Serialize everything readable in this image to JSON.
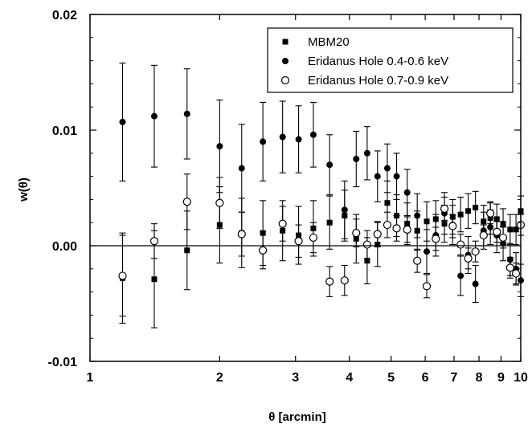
{
  "chart_data": {
    "type": "scatter",
    "xlabel": "θ [arcmin]",
    "ylabel": "w(θ)",
    "xscale": "log",
    "xlim": [
      1,
      10
    ],
    "ylim": [
      -0.01,
      0.02
    ],
    "x_ticks": [
      1,
      2,
      3,
      4,
      5,
      6,
      7,
      8,
      9,
      10
    ],
    "x_tick_labels": [
      "1",
      "2",
      "3",
      "4",
      "5",
      "6",
      "7",
      "8",
      "9",
      "10"
    ],
    "y_ticks": [
      -0.01,
      0.0,
      0.01,
      0.02
    ],
    "y_tick_labels": [
      "-0.01",
      "0.00",
      "0.01",
      "0.02"
    ],
    "zero_line": true,
    "grid": false,
    "legend_position": "top-right",
    "legend": [
      "MBM20",
      "Eridanus Hole 0.4-0.6 keV",
      "Eridanus Hole 0.7-0.9 keV"
    ],
    "series": [
      {
        "name": "MBM20",
        "marker": "filled-square",
        "points": [
          {
            "x": 1.19,
            "y": -0.0028,
            "err": 0.0039
          },
          {
            "x": 1.41,
            "y": -0.0029,
            "err": 0.0042
          },
          {
            "x": 1.68,
            "y": -0.0004,
            "err": 0.0034
          },
          {
            "x": 2.0,
            "y": 0.0018,
            "err": 0.0033
          },
          {
            "x": 2.25,
            "y": 0.0011,
            "err": 0.003
          },
          {
            "x": 2.52,
            "y": 0.0011,
            "err": 0.0028
          },
          {
            "x": 2.8,
            "y": 0.0013,
            "err": 0.0026
          },
          {
            "x": 3.05,
            "y": 0.0009,
            "err": 0.0025
          },
          {
            "x": 3.3,
            "y": 0.0015,
            "err": 0.0024
          },
          {
            "x": 3.6,
            "y": 0.002,
            "err": 0.0023
          },
          {
            "x": 3.9,
            "y": 0.0026,
            "err": 0.0022
          },
          {
            "x": 4.15,
            "y": 0.0006,
            "err": 0.0021
          },
          {
            "x": 4.4,
            "y": -0.0013,
            "err": 0.002
          },
          {
            "x": 4.65,
            "y": 0.0001,
            "err": 0.0019
          },
          {
            "x": 4.9,
            "y": 0.0037,
            "err": 0.0019
          },
          {
            "x": 5.15,
            "y": 0.0026,
            "err": 0.0018
          },
          {
            "x": 5.45,
            "y": 0.0019,
            "err": 0.0018
          },
          {
            "x": 5.75,
            "y": 0.0013,
            "err": 0.0017
          },
          {
            "x": 6.05,
            "y": 0.0021,
            "err": 0.0017
          },
          {
            "x": 6.35,
            "y": 0.0023,
            "err": 0.0016
          },
          {
            "x": 6.65,
            "y": 0.0019,
            "err": 0.0016
          },
          {
            "x": 6.95,
            "y": 0.0025,
            "err": 0.0015
          },
          {
            "x": 7.25,
            "y": 0.0027,
            "err": 0.0015
          },
          {
            "x": 7.55,
            "y": 0.003,
            "err": 0.0015
          },
          {
            "x": 7.85,
            "y": 0.0033,
            "err": 0.0014
          },
          {
            "x": 8.2,
            "y": 0.0021,
            "err": 0.0014
          },
          {
            "x": 8.5,
            "y": 0.0024,
            "err": 0.0014
          },
          {
            "x": 8.8,
            "y": 0.0023,
            "err": 0.0013
          },
          {
            "x": 9.1,
            "y": 0.0019,
            "err": 0.0013
          },
          {
            "x": 9.45,
            "y": 0.0014,
            "err": 0.0013
          },
          {
            "x": 9.75,
            "y": 0.0014,
            "err": 0.0013
          },
          {
            "x": 10.0,
            "y": 0.003,
            "err": 0.0013
          }
        ]
      },
      {
        "name": "Eridanus Hole 0.4-0.6 keV",
        "marker": "filled-circle",
        "points": [
          {
            "x": 1.19,
            "y": 0.0107,
            "err": 0.0051
          },
          {
            "x": 1.41,
            "y": 0.0112,
            "err": 0.0044
          },
          {
            "x": 1.68,
            "y": 0.0114,
            "err": 0.0039
          },
          {
            "x": 2.0,
            "y": 0.0086,
            "err": 0.004
          },
          {
            "x": 2.25,
            "y": 0.0067,
            "err": 0.0038
          },
          {
            "x": 2.52,
            "y": 0.009,
            "err": 0.0034
          },
          {
            "x": 2.8,
            "y": 0.0094,
            "err": 0.0031
          },
          {
            "x": 3.05,
            "y": 0.0092,
            "err": 0.0029
          },
          {
            "x": 3.3,
            "y": 0.0096,
            "err": 0.0028
          },
          {
            "x": 3.6,
            "y": 0.007,
            "err": 0.0026
          },
          {
            "x": 3.9,
            "y": 0.0031,
            "err": 0.0025
          },
          {
            "x": 4.15,
            "y": 0.0075,
            "err": 0.0024
          },
          {
            "x": 4.4,
            "y": 0.008,
            "err": 0.0023
          },
          {
            "x": 4.65,
            "y": 0.006,
            "err": 0.0022
          },
          {
            "x": 4.9,
            "y": 0.0067,
            "err": 0.0021
          },
          {
            "x": 5.15,
            "y": 0.006,
            "err": 0.002
          },
          {
            "x": 5.45,
            "y": 0.0046,
            "err": 0.002
          },
          {
            "x": 5.75,
            "y": 0.0026,
            "err": 0.0019
          },
          {
            "x": 6.05,
            "y": -0.0005,
            "err": 0.0019
          },
          {
            "x": 6.35,
            "y": 0.0009,
            "err": 0.0018
          },
          {
            "x": 6.65,
            "y": 0.0028,
            "err": 0.0018
          },
          {
            "x": 6.95,
            "y": 0.0018,
            "err": 0.0017
          },
          {
            "x": 7.25,
            "y": -0.0026,
            "err": 0.0017
          },
          {
            "x": 7.55,
            "y": -0.0008,
            "err": 0.0016
          },
          {
            "x": 7.85,
            "y": -0.0033,
            "err": 0.0016
          },
          {
            "x": 8.2,
            "y": 0.0013,
            "err": 0.0016
          },
          {
            "x": 8.5,
            "y": 0.0016,
            "err": 0.0015
          },
          {
            "x": 8.8,
            "y": 0.0009,
            "err": 0.0015
          },
          {
            "x": 9.1,
            "y": 0.0002,
            "err": 0.0015
          },
          {
            "x": 9.45,
            "y": -0.0012,
            "err": 0.0014
          },
          {
            "x": 9.75,
            "y": -0.002,
            "err": 0.0014
          },
          {
            "x": 10.0,
            "y": -0.003,
            "err": 0.0014
          }
        ]
      },
      {
        "name": "Eridanus Hole 0.7-0.9 keV",
        "marker": "open-circle",
        "points": [
          {
            "x": 1.19,
            "y": -0.0026,
            "err": 0.0035
          },
          {
            "x": 1.41,
            "y": 0.0004,
            "err": 0.0015
          },
          {
            "x": 1.68,
            "y": 0.0038,
            "err": 0.0024
          },
          {
            "x": 2.0,
            "y": 0.0037,
            "err": 0.0022
          },
          {
            "x": 2.25,
            "y": 0.001,
            "err": 0.0019
          },
          {
            "x": 2.52,
            "y": -0.0004,
            "err": 0.0016
          },
          {
            "x": 2.8,
            "y": 0.0019,
            "err": 0.0015
          },
          {
            "x": 3.05,
            "y": 0.0004,
            "err": 0.0014
          },
          {
            "x": 3.3,
            "y": 0.0007,
            "err": 0.0013
          },
          {
            "x": 3.6,
            "y": -0.0031,
            "err": 0.0013
          },
          {
            "x": 3.9,
            "y": -0.003,
            "err": 0.0013
          },
          {
            "x": 4.15,
            "y": 0.0011,
            "err": 0.0012
          },
          {
            "x": 4.4,
            "y": 0.0001,
            "err": 0.0012
          },
          {
            "x": 4.65,
            "y": 0.001,
            "err": 0.0011
          },
          {
            "x": 4.9,
            "y": 0.0018,
            "err": 0.0011
          },
          {
            "x": 5.15,
            "y": 0.0015,
            "err": 0.0011
          },
          {
            "x": 5.45,
            "y": 0.0014,
            "err": 0.0011
          },
          {
            "x": 5.75,
            "y": -0.0013,
            "err": 0.001
          },
          {
            "x": 6.05,
            "y": -0.0035,
            "err": 0.001
          },
          {
            "x": 6.35,
            "y": 0.0006,
            "err": 0.001
          },
          {
            "x": 6.65,
            "y": 0.0032,
            "err": 0.001
          },
          {
            "x": 6.95,
            "y": 0.0017,
            "err": 0.001
          },
          {
            "x": 7.25,
            "y": 0.0001,
            "err": 0.0009
          },
          {
            "x": 7.55,
            "y": -0.0011,
            "err": 0.0009
          },
          {
            "x": 7.85,
            "y": -0.0005,
            "err": 0.0009
          },
          {
            "x": 8.2,
            "y": 0.0009,
            "err": 0.0009
          },
          {
            "x": 8.5,
            "y": 0.0028,
            "err": 0.0009
          },
          {
            "x": 8.8,
            "y": 0.0012,
            "err": 0.0009
          },
          {
            "x": 9.1,
            "y": 0.0007,
            "err": 0.0009
          },
          {
            "x": 9.45,
            "y": -0.0019,
            "err": 0.0009
          },
          {
            "x": 9.75,
            "y": -0.0024,
            "err": 0.0009
          },
          {
            "x": 10.0,
            "y": 0.0018,
            "err": 0.0009
          }
        ]
      }
    ]
  }
}
